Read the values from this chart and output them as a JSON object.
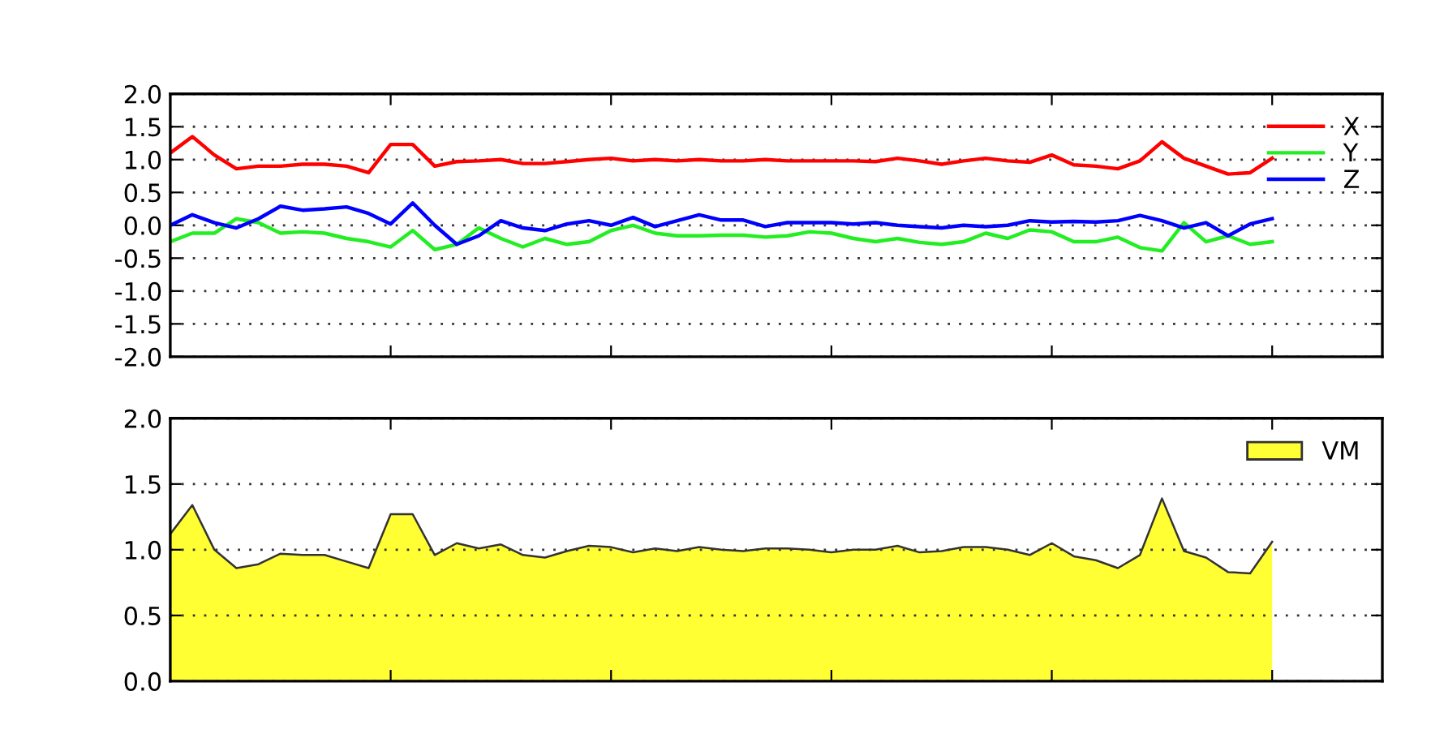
{
  "chart_data": [
    {
      "type": "line",
      "categories": [
        null,
        null,
        null,
        null,
        null,
        null,
        null,
        null,
        null,
        null,
        null,
        null,
        null,
        null,
        null,
        null,
        null,
        null,
        null,
        null,
        null,
        null,
        null,
        null,
        null,
        null,
        null,
        null,
        null,
        null,
        null,
        null,
        null,
        null,
        null,
        null,
        null,
        null,
        null,
        null,
        null,
        null,
        null,
        null,
        null,
        null,
        null,
        null,
        null,
        null,
        null
      ],
      "series": [
        {
          "name": "X",
          "color": "#ff0000",
          "values": [
            1.1,
            1.35,
            1.07,
            0.86,
            0.9,
            0.9,
            0.93,
            0.93,
            0.9,
            0.8,
            1.23,
            1.23,
            0.9,
            0.97,
            0.98,
            1.0,
            0.94,
            0.94,
            0.97,
            1.0,
            1.02,
            0.98,
            1.0,
            0.98,
            1.0,
            0.98,
            0.98,
            1.0,
            0.98,
            0.98,
            0.98,
            0.98,
            0.97,
            1.02,
            0.98,
            0.93,
            0.98,
            1.02,
            0.98,
            0.96,
            1.07,
            0.92,
            0.9,
            0.86,
            0.98,
            1.27,
            1.02,
            0.9,
            0.78,
            0.8,
            1.02
          ]
        },
        {
          "name": "Y",
          "color": "#22ee22",
          "values": [
            -0.25,
            -0.12,
            -0.12,
            0.1,
            0.04,
            -0.12,
            -0.1,
            -0.12,
            -0.2,
            -0.25,
            -0.33,
            -0.08,
            -0.37,
            -0.29,
            -0.04,
            -0.2,
            -0.33,
            -0.2,
            -0.29,
            -0.25,
            -0.08,
            0.0,
            -0.12,
            -0.16,
            -0.16,
            -0.15,
            -0.15,
            -0.18,
            -0.16,
            -0.1,
            -0.12,
            -0.2,
            -0.25,
            -0.2,
            -0.26,
            -0.29,
            -0.25,
            -0.12,
            -0.2,
            -0.07,
            -0.1,
            -0.25,
            -0.25,
            -0.18,
            -0.34,
            -0.39,
            0.04,
            -0.25,
            -0.16,
            -0.29,
            -0.25
          ]
        },
        {
          "name": "Z",
          "color": "#0000ff",
          "values": [
            0.0,
            0.16,
            0.04,
            -0.04,
            0.1,
            0.29,
            0.23,
            0.25,
            0.28,
            0.18,
            0.02,
            0.34,
            0.0,
            -0.29,
            -0.16,
            0.07,
            -0.04,
            -0.08,
            0.02,
            0.07,
            0.0,
            0.12,
            -0.02,
            0.07,
            0.16,
            0.08,
            0.08,
            -0.02,
            0.04,
            0.04,
            0.04,
            0.02,
            0.04,
            0.0,
            -0.02,
            -0.04,
            0.0,
            -0.02,
            0.0,
            0.07,
            0.05,
            0.06,
            0.05,
            0.07,
            0.15,
            0.07,
            -0.04,
            0.04,
            -0.16,
            0.02,
            0.1
          ]
        }
      ],
      "ylim": [
        -2.0,
        2.0
      ],
      "yticks": [
        {
          "value": -2.0,
          "label": "-2.0"
        },
        {
          "value": -1.5,
          "label": "-1.5"
        },
        {
          "value": -1.0,
          "label": "-1.0"
        },
        {
          "value": -0.5,
          "label": "-0.5"
        },
        {
          "value": 0.0,
          "label": "0.0"
        },
        {
          "value": 0.5,
          "label": "0.5"
        },
        {
          "value": 1.0,
          "label": "1.0"
        },
        {
          "value": 1.5,
          "label": "1.5"
        },
        {
          "value": 2.0,
          "label": "2.0"
        }
      ],
      "grid": "y",
      "legend": "top right",
      "tick_labels": "y"
    },
    {
      "type": "area",
      "categories": [
        null,
        null,
        null,
        null,
        null,
        null,
        null,
        null,
        null,
        null,
        null,
        null,
        null,
        null,
        null,
        null,
        null,
        null,
        null,
        null,
        null,
        null,
        null,
        null,
        null,
        null,
        null,
        null,
        null,
        null,
        null,
        null,
        null,
        null,
        null,
        null,
        null,
        null,
        null,
        null,
        null,
        null,
        null,
        null,
        null,
        null,
        null,
        null,
        null,
        null,
        null
      ],
      "series": [
        {
          "name": "VM",
          "color": "#ffff33",
          "values": [
            1.12,
            1.34,
            1.0,
            0.86,
            0.89,
            0.97,
            0.96,
            0.96,
            0.91,
            0.86,
            1.27,
            1.27,
            0.96,
            1.05,
            1.01,
            1.04,
            0.96,
            0.94,
            0.99,
            1.03,
            1.02,
            0.98,
            1.01,
            0.99,
            1.02,
            1.0,
            0.99,
            1.01,
            1.01,
            1.0,
            0.98,
            1.0,
            1.0,
            1.03,
            0.98,
            0.99,
            1.02,
            1.02,
            1.0,
            0.96,
            1.05,
            0.95,
            0.92,
            0.86,
            0.96,
            1.39,
            0.99,
            0.94,
            0.83,
            0.82,
            1.06
          ]
        }
      ],
      "ylim": [
        0.0,
        2.0
      ],
      "yticks": [
        {
          "value": 0.0,
          "label": "0.0"
        },
        {
          "value": 0.5,
          "label": "0.5"
        },
        {
          "value": 1.0,
          "label": "1.0"
        },
        {
          "value": 1.5,
          "label": "1.5"
        },
        {
          "value": 2.0,
          "label": "2.0"
        }
      ],
      "grid": "y",
      "legend": "top right",
      "tick_labels": "y"
    }
  ]
}
